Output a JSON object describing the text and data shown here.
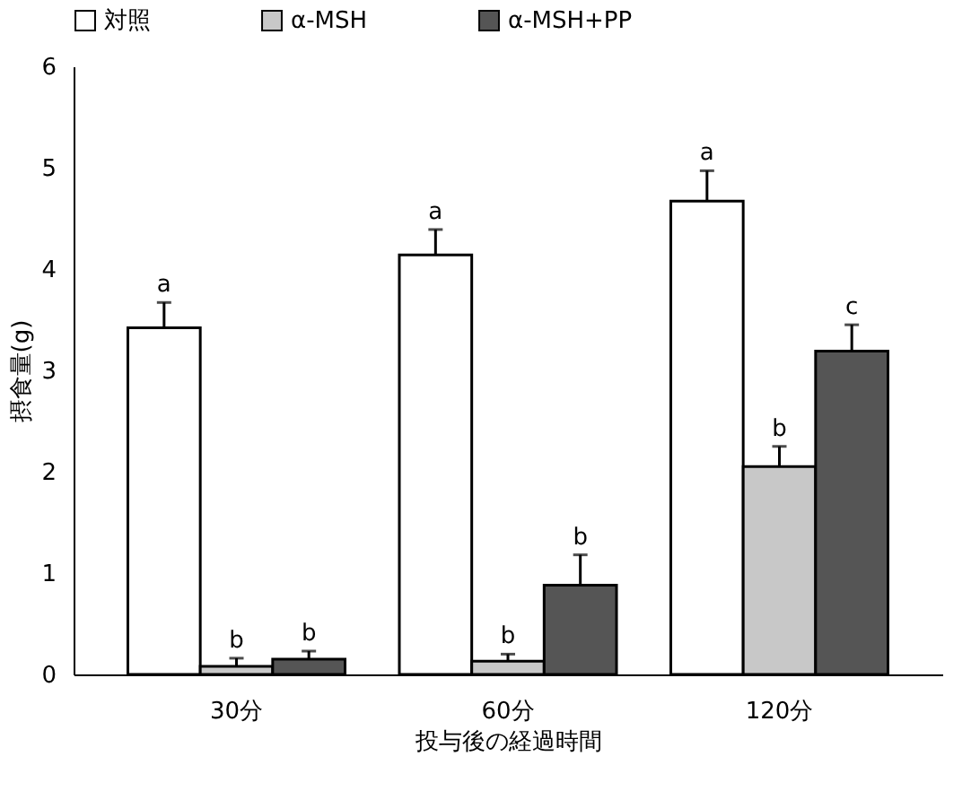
{
  "chart_data": {
    "type": "bar",
    "categories": [
      "30分",
      "60分",
      "120分"
    ],
    "xlabel": "投与後の経過時間",
    "ylabel": "摂食量(g)",
    "ylim": [
      0,
      6
    ],
    "yticks": [
      0,
      1,
      2,
      3,
      4,
      5,
      6
    ],
    "series": [
      {
        "name": "対照",
        "color": "#ffffff",
        "values": [
          3.42,
          4.14,
          4.67
        ],
        "errors": [
          [
            3.42,
            3.67
          ],
          [
            4.14,
            4.39
          ],
          [
            4.67,
            4.97
          ]
        ],
        "value_labels": [
          "a",
          "a",
          "a"
        ]
      },
      {
        "name": "α-MSH",
        "color": "#c8c8c8",
        "values": [
          0.08,
          0.13,
          2.05
        ],
        "errors": [
          [
            0.08,
            0.16
          ],
          [
            0.13,
            0.2
          ],
          [
            2.05,
            2.25
          ]
        ],
        "value_labels": [
          "b",
          "b",
          "b"
        ]
      },
      {
        "name": "α-MSH+PP",
        "color": "#555555",
        "values": [
          0.15,
          0.88,
          3.19
        ],
        "errors": [
          [
            0.15,
            0.23
          ],
          [
            0.88,
            1.18
          ],
          [
            3.19,
            3.45
          ]
        ],
        "value_labels": [
          "b",
          "b",
          "c"
        ]
      }
    ],
    "legend": "top",
    "grid": false
  }
}
